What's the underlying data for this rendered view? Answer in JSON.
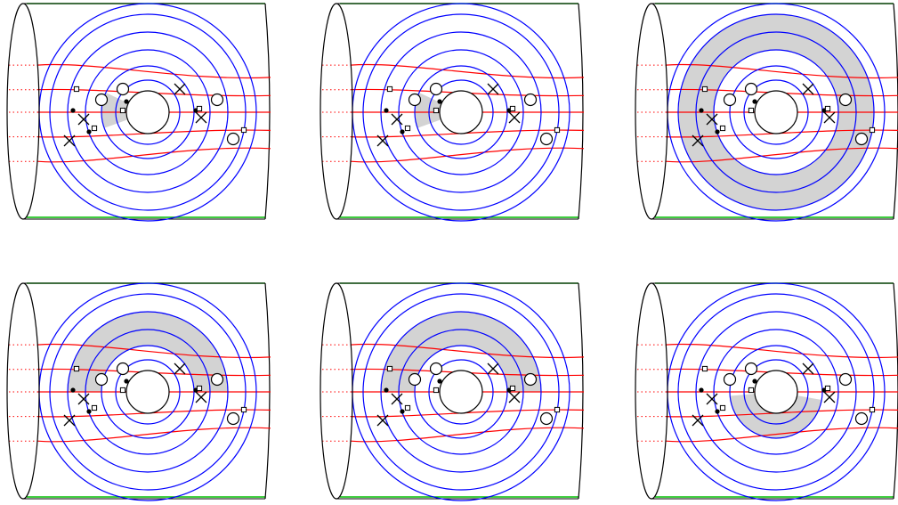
{
  "colors": {
    "background": "#ffffff",
    "outline": "#000000",
    "circles": "#0000ff",
    "strands": "#ff0000",
    "rims": "#00bb00",
    "shading": "#d3d3d3"
  },
  "panels": [
    {
      "shading": "small-left-sector"
    },
    {
      "shading": "small-left-sector"
    },
    {
      "shading": "full-annulus"
    },
    {
      "shading": "upper-half-annulus"
    },
    {
      "shading": "upper-half-annulus"
    },
    {
      "shading": "lower-half-annulus"
    }
  ]
}
